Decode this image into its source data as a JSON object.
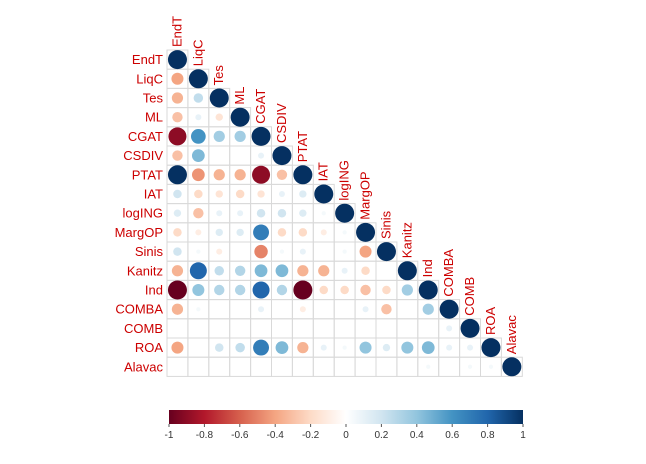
{
  "chart_data": {
    "type": "heatmap",
    "variables": [
      "EndT",
      "LiqC",
      "Tes",
      "ML",
      "CGAT",
      "CSDIV",
      "PTAT",
      "IAT",
      "logING",
      "MargOP",
      "Sinis",
      "Kanitz",
      "Ind",
      "COMBA",
      "COMB",
      "ROA",
      "Alavac"
    ],
    "layout": "lower-triangle",
    "method": "circle",
    "color_scale": {
      "min": -1,
      "max": 1,
      "ticks": [
        -1,
        -0.8,
        -0.6,
        -0.4,
        -0.2,
        0,
        0.2,
        0.4,
        0.6,
        0.8,
        1
      ],
      "tick_labels": [
        "-1",
        "-0.8",
        "-0.6",
        "-0.4",
        "-0.2",
        "0",
        "0.2",
        "0.4",
        "0.6",
        "0.8",
        "1"
      ],
      "negative_color": "#67001F",
      "zero_color": "#FFFFFF",
      "positive_color": "#053061",
      "legend_position": "bottom"
    },
    "matrix": [
      [
        1
      ],
      [
        -0.4,
        1
      ],
      [
        -0.35,
        0.25,
        1
      ],
      [
        -0.3,
        0.1,
        -0.15,
        1
      ],
      [
        -0.9,
        0.6,
        0.35,
        0.35,
        1
      ],
      [
        -0.3,
        0.45,
        0.0,
        0.0,
        0.1,
        1
      ],
      [
        1.0,
        -0.45,
        -0.35,
        -0.35,
        -0.9,
        -0.3,
        1
      ],
      [
        0.2,
        -0.2,
        -0.15,
        -0.2,
        -0.15,
        0.1,
        0.15,
        1
      ],
      [
        0.15,
        -0.3,
        0.1,
        0.1,
        0.2,
        0.2,
        0.15,
        0.05,
        1
      ],
      [
        -0.2,
        -0.1,
        0.15,
        0.15,
        0.7,
        -0.2,
        -0.2,
        -0.1,
        0.05,
        1
      ],
      [
        0.2,
        0.05,
        -0.1,
        0.0,
        -0.5,
        0.05,
        0.1,
        0.0,
        0.05,
        -0.4,
        1
      ],
      [
        -0.35,
        0.8,
        0.25,
        0.3,
        0.45,
        0.45,
        -0.35,
        -0.35,
        0.1,
        -0.2,
        0.0,
        1
      ],
      [
        -1.0,
        0.4,
        0.3,
        0.3,
        0.8,
        0.3,
        -1.0,
        -0.2,
        -0.2,
        -0.3,
        -0.2,
        0.35,
        1
      ],
      [
        -0.35,
        0.05,
        0.0,
        0.0,
        0.1,
        0.0,
        -0.1,
        0.0,
        0.0,
        0.1,
        -0.3,
        0.0,
        0.35,
        1
      ],
      [
        0.0,
        0.0,
        0.0,
        0.0,
        0.0,
        0.0,
        0.0,
        0.0,
        0.0,
        0.0,
        0.0,
        0.0,
        0.0,
        0.1,
        1
      ],
      [
        -0.4,
        0.0,
        0.2,
        0.25,
        0.7,
        0.45,
        -0.35,
        0.1,
        0.05,
        0.4,
        0.15,
        0.4,
        0.45,
        0.1,
        0.1,
        1
      ],
      [
        0.0,
        0.0,
        0.0,
        0.0,
        0.0,
        0.0,
        0.0,
        0.0,
        0.0,
        0.0,
        0.0,
        0.0,
        0.05,
        0.0,
        0.05,
        0.05,
        1
      ]
    ]
  }
}
